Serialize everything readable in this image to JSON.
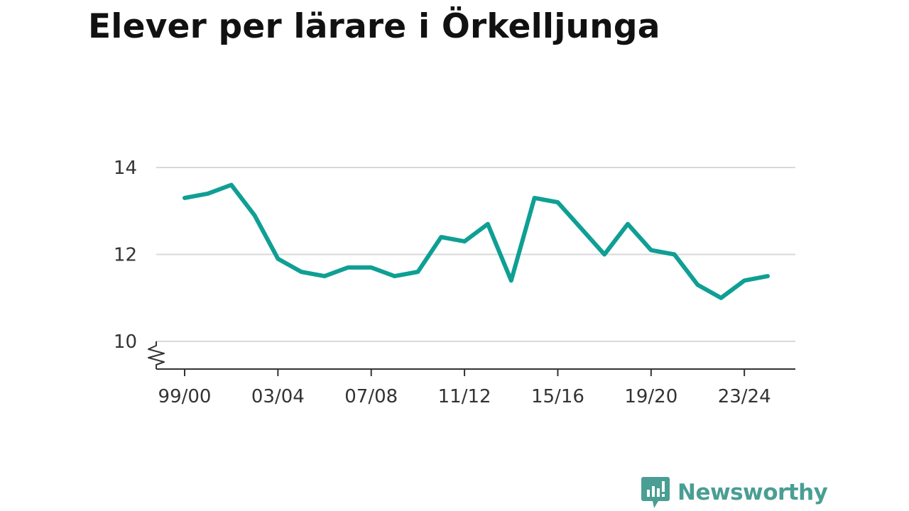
{
  "title": "Elever per lärare i Örkelljunga",
  "logo": {
    "text": "Newsworthy",
    "icon": "newsworthy-chart-bubble-icon",
    "color": "#4a9e93"
  },
  "colors": {
    "line": "#0f9f94",
    "grid": "#d9d9d9",
    "axis": "#333333"
  },
  "chart_data": {
    "type": "line",
    "title": "Elever per lärare i Örkelljunga",
    "xlabel": "",
    "ylabel": "",
    "categories": [
      "99/00",
      "00/01",
      "01/02",
      "02/03",
      "03/04",
      "04/05",
      "05/06",
      "06/07",
      "07/08",
      "08/09",
      "09/10",
      "10/11",
      "11/12",
      "12/13",
      "13/14",
      "14/15",
      "15/16",
      "16/17",
      "17/18",
      "18/19",
      "19/20",
      "20/21",
      "21/22",
      "22/23",
      "23/24",
      "24/25"
    ],
    "values": [
      13.3,
      13.4,
      13.6,
      12.9,
      11.9,
      11.6,
      11.5,
      11.7,
      11.7,
      11.5,
      11.6,
      12.4,
      12.3,
      12.7,
      11.4,
      13.3,
      13.2,
      12.6,
      12.0,
      12.7,
      12.1,
      12.0,
      11.3,
      11.0,
      11.4,
      11.5
    ],
    "x_tick_labels": [
      "99/00",
      "03/04",
      "07/08",
      "11/12",
      "15/16",
      "19/20",
      "23/24"
    ],
    "y_ticks": [
      10,
      12,
      14
    ],
    "ylim": [
      10,
      14
    ],
    "y_axis_break": true,
    "grid": true,
    "legend": "none"
  }
}
